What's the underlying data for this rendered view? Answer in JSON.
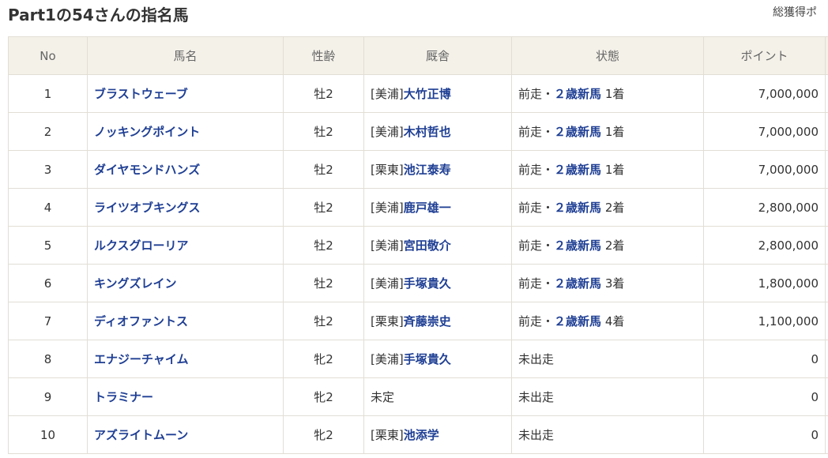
{
  "title": "Part1の54さんの指名馬",
  "total_label": "総獲得ポ",
  "colors": {
    "link": "#1f3f94",
    "header_bg": "#f4f1e9"
  },
  "columns": [
    "No",
    "馬名",
    "性齢",
    "厩舎",
    "状態",
    "ポイント"
  ],
  "rows": [
    {
      "no": "1",
      "name": "ブラストウェーブ",
      "sex_age": "牡2",
      "stable_prefix": "[美浦]",
      "trainer": "大竹正博",
      "status_prefix": "前走・",
      "race": "２歳新馬",
      "finish": "1着",
      "points": "7,000,000"
    },
    {
      "no": "2",
      "name": "ノッキングポイント",
      "sex_age": "牡2",
      "stable_prefix": "[美浦]",
      "trainer": "木村哲也",
      "status_prefix": "前走・",
      "race": "２歳新馬",
      "finish": "1着",
      "points": "7,000,000"
    },
    {
      "no": "3",
      "name": "ダイヤモンドハンズ",
      "sex_age": "牡2",
      "stable_prefix": "[栗東]",
      "trainer": "池江泰寿",
      "status_prefix": "前走・",
      "race": "２歳新馬",
      "finish": "1着",
      "points": "7,000,000"
    },
    {
      "no": "4",
      "name": "ライツオブキングス",
      "sex_age": "牡2",
      "stable_prefix": "[美浦]",
      "trainer": "鹿戸雄一",
      "status_prefix": "前走・",
      "race": "２歳新馬",
      "finish": "2着",
      "points": "2,800,000"
    },
    {
      "no": "5",
      "name": "ルクスグローリア",
      "sex_age": "牡2",
      "stable_prefix": "[美浦]",
      "trainer": "宮田敬介",
      "status_prefix": "前走・",
      "race": "２歳新馬",
      "finish": "2着",
      "points": "2,800,000"
    },
    {
      "no": "6",
      "name": "キングズレイン",
      "sex_age": "牡2",
      "stable_prefix": "[美浦]",
      "trainer": "手塚貴久",
      "status_prefix": "前走・",
      "race": "２歳新馬",
      "finish": "3着",
      "points": "1,800,000"
    },
    {
      "no": "7",
      "name": "ディオファントス",
      "sex_age": "牡2",
      "stable_prefix": "[栗東]",
      "trainer": "斉藤崇史",
      "status_prefix": "前走・",
      "race": "２歳新馬",
      "finish": "4着",
      "points": "1,100,000"
    },
    {
      "no": "8",
      "name": "エナジーチャイム",
      "sex_age": "牝2",
      "stable_prefix": "[美浦]",
      "trainer": "手塚貴久",
      "status_prefix": "未出走",
      "race": "",
      "finish": "",
      "points": "0"
    },
    {
      "no": "9",
      "name": "トラミナー",
      "sex_age": "牝2",
      "stable_prefix": "未定",
      "trainer": "",
      "status_prefix": "未出走",
      "race": "",
      "finish": "",
      "points": "0"
    },
    {
      "no": "10",
      "name": "アズライトムーン",
      "sex_age": "牝2",
      "stable_prefix": "[栗東]",
      "trainer": "池添学",
      "status_prefix": "未出走",
      "race": "",
      "finish": "",
      "points": "0"
    }
  ]
}
